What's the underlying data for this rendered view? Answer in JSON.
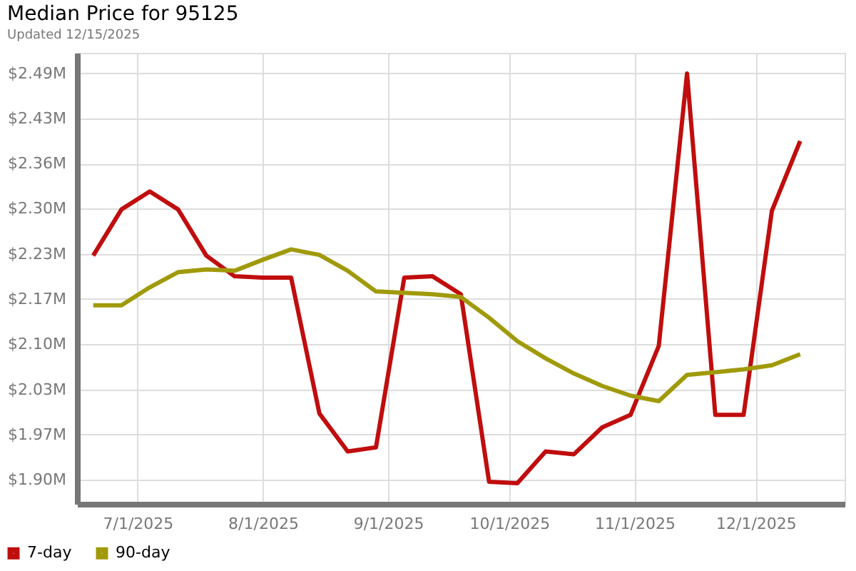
{
  "chart_data": {
    "type": "line",
    "title": "Median Price for 95125",
    "subtitle": "Updated 12/15/2025",
    "x": [
      "2025-06-20",
      "2025-06-27",
      "2025-07-04",
      "2025-07-11",
      "2025-07-18",
      "2025-07-25",
      "2025-08-01",
      "2025-08-08",
      "2025-08-15",
      "2025-08-22",
      "2025-08-29",
      "2025-09-05",
      "2025-09-12",
      "2025-09-19",
      "2025-09-26",
      "2025-10-03",
      "2025-10-10",
      "2025-10-17",
      "2025-10-24",
      "2025-10-31",
      "2025-11-07",
      "2025-11-14",
      "2025-11-21",
      "2025-11-28",
      "2025-12-05",
      "2025-12-12"
    ],
    "series": [
      {
        "name": "7-day",
        "color": "#c00d0d",
        "values": [
          2.228,
          2.295,
          2.321,
          2.295,
          2.228,
          2.198,
          2.196,
          2.196,
          1.999,
          1.944,
          1.95,
          2.196,
          2.198,
          2.172,
          1.9,
          1.898,
          1.944,
          1.94,
          1.979,
          1.997,
          2.097,
          2.492,
          1.997,
          1.997,
          2.293,
          2.394
        ]
      },
      {
        "name": "90-day",
        "color": "#a09a0a",
        "values": [
          2.156,
          2.156,
          2.182,
          2.204,
          2.208,
          2.206,
          2.222,
          2.237,
          2.229,
          2.206,
          2.176,
          2.174,
          2.172,
          2.168,
          2.138,
          2.104,
          2.079,
          2.057,
          2.039,
          2.025,
          2.017,
          2.055,
          2.059,
          2.063,
          2.069,
          2.085
        ]
      }
    ],
    "xlim": [
      "2025-06-16",
      "2025-12-23"
    ],
    "xticks": [
      {
        "value": "2025-07-01",
        "label": "7/1/2025"
      },
      {
        "value": "2025-08-01",
        "label": "8/1/2025"
      },
      {
        "value": "2025-09-01",
        "label": "9/1/2025"
      },
      {
        "value": "2025-10-01",
        "label": "10/1/2025"
      },
      {
        "value": "2025-11-01",
        "label": "11/1/2025"
      },
      {
        "value": "2025-12-01",
        "label": "12/1/2025"
      }
    ],
    "ylim": [
      1.868,
      2.522
    ],
    "yticks": [
      {
        "value": 1.903,
        "label": "$1.90M"
      },
      {
        "value": 1.9685,
        "label": "$1.97M"
      },
      {
        "value": 2.034,
        "label": "$2.03M"
      },
      {
        "value": 2.0995,
        "label": "$2.10M"
      },
      {
        "value": 2.165,
        "label": "$2.17M"
      },
      {
        "value": 2.2305,
        "label": "$2.23M"
      },
      {
        "value": 2.296,
        "label": "$2.30M"
      },
      {
        "value": 2.3615,
        "label": "$2.36M"
      },
      {
        "value": 2.427,
        "label": "$2.43M"
      },
      {
        "value": 2.4925,
        "label": "$2.49M"
      }
    ],
    "grid": true,
    "legend": "bottom left",
    "marker": "none",
    "line_style": "solid"
  }
}
